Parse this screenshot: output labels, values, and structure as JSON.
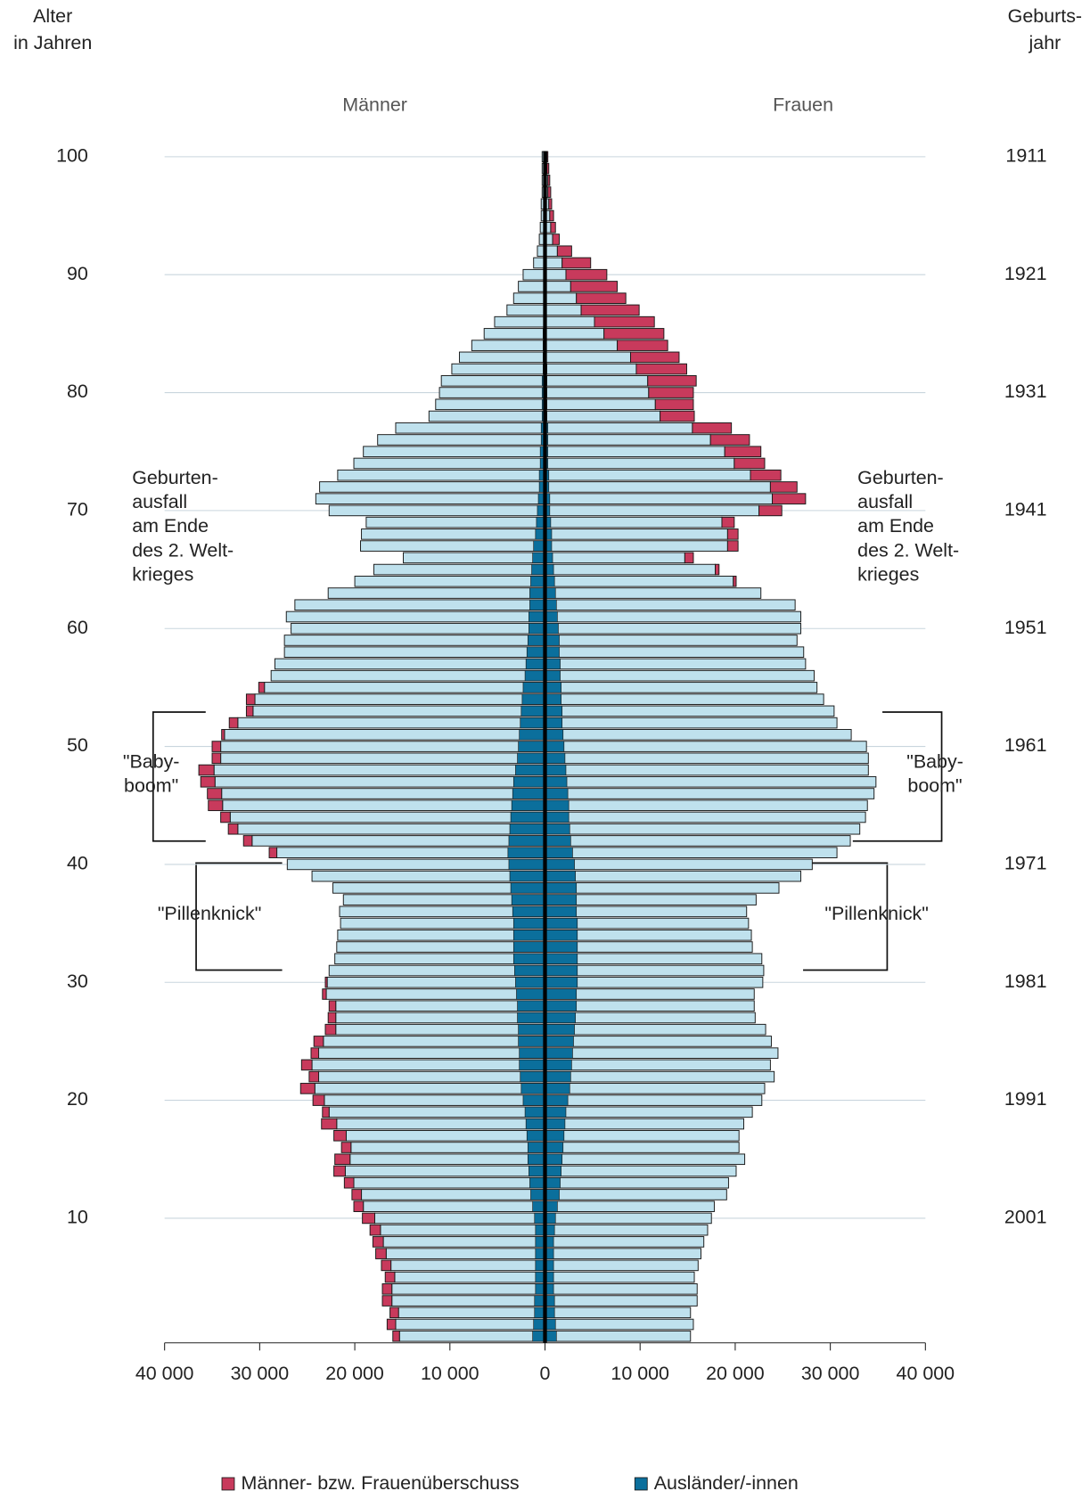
{
  "chart_data": {
    "type": "pyramid",
    "y_label": [
      "Alter",
      "in Jahren"
    ],
    "y2_label": [
      "Geburts-",
      "jahr"
    ],
    "sides": [
      {
        "label": "Männer",
        "base": [
          15300,
          15700,
          15400,
          16100,
          16100,
          15800,
          16200,
          16700,
          17000,
          17300,
          17900,
          19100,
          19300,
          20100,
          21000,
          20500,
          20400,
          20900,
          21900,
          22700,
          23200,
          24200,
          23800,
          24500,
          23800,
          23300,
          22000,
          22000,
          22000,
          23000,
          22900,
          22700,
          22100,
          21900,
          21800,
          21500,
          21600,
          21200,
          22300,
          24500,
          27100,
          28200,
          30800,
          32300,
          33100,
          33900,
          34000,
          34700,
          34800,
          34100,
          34100,
          33700,
          32300,
          30700,
          30500,
          29500,
          28800,
          28400,
          27400,
          27400,
          26700,
          27200,
          26300,
          22800,
          20000,
          18000,
          14900,
          19400,
          19300,
          18800,
          22700,
          24100,
          23700,
          21800,
          20100,
          19100,
          17600,
          15700,
          12200,
          11500,
          11100,
          10900,
          9800,
          9000,
          7700,
          6400,
          5300,
          4000,
          3300,
          2800,
          2300,
          1200,
          800,
          600,
          500,
          400,
          400,
          300,
          300,
          300,
          300
        ],
        "surplus": [
          700,
          900,
          900,
          1000,
          1000,
          1000,
          1000,
          1100,
          1100,
          1100,
          1300,
          1000,
          1000,
          1000,
          1200,
          1600,
          1000,
          1300,
          1600,
          700,
          1200,
          1500,
          1000,
          1100,
          800,
          1000,
          1100,
          800,
          700,
          400,
          200,
          0,
          0,
          0,
          0,
          0,
          0,
          0,
          0,
          0,
          0,
          800,
          900,
          1000,
          1000,
          1500,
          1500,
          1500,
          1600,
          900,
          900,
          300,
          900,
          700,
          900,
          600,
          0,
          0,
          0,
          0,
          0,
          0,
          0,
          0,
          0,
          0,
          0,
          0,
          0,
          0,
          0,
          0,
          0,
          0,
          0,
          0,
          0,
          0,
          0,
          0,
          0,
          0,
          0,
          0,
          0,
          0,
          0,
          0,
          0,
          0,
          0,
          0,
          0,
          0,
          0,
          0,
          0,
          0,
          0,
          0,
          0
        ],
        "foreign": [
          1300,
          1200,
          1100,
          1100,
          1000,
          1000,
          1000,
          1000,
          1000,
          1000,
          1100,
          1300,
          1500,
          1600,
          1700,
          1800,
          1800,
          1900,
          2000,
          2100,
          2300,
          2500,
          2600,
          2700,
          2700,
          2800,
          2800,
          2900,
          2900,
          3000,
          3100,
          3200,
          3300,
          3300,
          3300,
          3300,
          3400,
          3500,
          3600,
          3700,
          3800,
          3900,
          3800,
          3700,
          3600,
          3500,
          3400,
          3300,
          3100,
          2900,
          2800,
          2700,
          2600,
          2500,
          2400,
          2300,
          2100,
          2000,
          1900,
          1800,
          1700,
          1700,
          1600,
          1600,
          1500,
          1400,
          1300,
          1200,
          1000,
          900,
          800,
          700,
          600,
          600,
          500,
          500,
          400,
          400,
          300,
          300,
          300,
          300,
          200,
          200,
          200,
          200,
          100,
          100,
          100,
          100,
          100,
          100,
          100,
          100,
          100,
          100,
          100,
          100,
          100,
          100,
          100
        ]
      },
      {
        "label": "Frauen",
        "base": [
          15300,
          15600,
          15300,
          16000,
          16000,
          15700,
          16100,
          16400,
          16700,
          17100,
          17500,
          17800,
          19100,
          19300,
          20100,
          21000,
          20400,
          20400,
          20900,
          21800,
          22800,
          23100,
          24100,
          23700,
          24500,
          23800,
          23200,
          22100,
          22000,
          22000,
          22900,
          23000,
          22800,
          21800,
          21700,
          21400,
          21200,
          22200,
          24600,
          26900,
          28100,
          30700,
          32100,
          33100,
          33700,
          33900,
          34600,
          34800,
          34000,
          34000,
          33800,
          32200,
          30700,
          30400,
          29300,
          28600,
          28300,
          27400,
          27200,
          26500,
          26900,
          26900,
          26300,
          22700,
          19800,
          17900,
          14700,
          19200,
          19200,
          18600,
          22500,
          23900,
          23700,
          21600,
          19900,
          18900,
          17400,
          15500,
          12100,
          11600,
          10900,
          10800,
          9600,
          9000,
          7600,
          6200,
          5200,
          3800,
          3300,
          2700,
          2200,
          1800,
          1300,
          800,
          600,
          500,
          400,
          300,
          300,
          200,
          200
        ],
        "surplus": [
          0,
          0,
          0,
          0,
          0,
          0,
          0,
          0,
          0,
          0,
          0,
          0,
          0,
          0,
          0,
          0,
          0,
          0,
          0,
          0,
          0,
          0,
          0,
          0,
          0,
          0,
          0,
          0,
          0,
          0,
          0,
          0,
          0,
          0,
          0,
          0,
          0,
          0,
          0,
          0,
          0,
          0,
          0,
          0,
          0,
          0,
          0,
          0,
          0,
          0,
          0,
          0,
          0,
          0,
          0,
          0,
          0,
          0,
          0,
          0,
          0,
          0,
          0,
          0,
          300,
          400,
          900,
          1100,
          1100,
          1300,
          2400,
          3500,
          2800,
          3200,
          3200,
          3800,
          4100,
          4100,
          3600,
          4000,
          4700,
          5100,
          5300,
          5100,
          5300,
          6300,
          6300,
          6100,
          5200,
          4900,
          4300,
          3000,
          1500,
          700,
          500,
          400,
          300,
          300,
          200,
          200,
          100
        ],
        "foreign": [
          1200,
          1100,
          1000,
          1000,
          900,
          900,
          900,
          900,
          900,
          1000,
          1100,
          1300,
          1500,
          1600,
          1700,
          1800,
          1900,
          2000,
          2100,
          2200,
          2400,
          2600,
          2700,
          2800,
          2900,
          3000,
          3100,
          3200,
          3300,
          3300,
          3400,
          3400,
          3400,
          3400,
          3400,
          3400,
          3300,
          3300,
          3300,
          3200,
          3100,
          2900,
          2700,
          2600,
          2500,
          2500,
          2400,
          2300,
          2200,
          2100,
          2000,
          1900,
          1800,
          1800,
          1700,
          1700,
          1600,
          1600,
          1500,
          1500,
          1400,
          1300,
          1200,
          1100,
          1000,
          900,
          800,
          700,
          700,
          600,
          500,
          500,
          400,
          400,
          300,
          300,
          300,
          300,
          200,
          200,
          200,
          200,
          200,
          100,
          100,
          100,
          100,
          100,
          100,
          100,
          100,
          100,
          100,
          100,
          100,
          100,
          100,
          100,
          100,
          100,
          100
        ]
      }
    ],
    "ages": [
      0,
      1,
      2,
      3,
      4,
      5,
      6,
      7,
      8,
      9,
      10,
      11,
      12,
      13,
      14,
      15,
      16,
      17,
      18,
      19,
      20,
      21,
      22,
      23,
      24,
      25,
      26,
      27,
      28,
      29,
      30,
      31,
      32,
      33,
      34,
      35,
      36,
      37,
      38,
      39,
      40,
      41,
      42,
      43,
      44,
      45,
      46,
      47,
      48,
      49,
      50,
      51,
      52,
      53,
      54,
      55,
      56,
      57,
      58,
      59,
      60,
      61,
      62,
      63,
      64,
      65,
      66,
      67,
      68,
      69,
      70,
      71,
      72,
      73,
      74,
      75,
      76,
      77,
      78,
      79,
      80,
      81,
      82,
      83,
      84,
      85,
      86,
      87,
      88,
      89,
      90,
      91,
      92,
      93,
      94,
      95,
      96,
      97,
      98,
      99,
      100
    ],
    "ylim": [
      0,
      100
    ],
    "yticks": [
      10,
      20,
      30,
      40,
      50,
      60,
      70,
      80,
      90,
      100
    ],
    "y2ticks": [
      2001,
      1991,
      1981,
      1971,
      1961,
      1951,
      1941,
      1931,
      1921,
      1911
    ],
    "xlim": [
      0,
      40000
    ],
    "xticks": [
      0,
      {
        "value": 10000,
        "label": "10 000"
      },
      {
        "value": 20000,
        "label": "20 000"
      },
      {
        "value": 30000,
        "label": "30 000"
      },
      {
        "value": 40000,
        "label": "40 000"
      }
    ],
    "grid": true,
    "base_color": "#bfe1ed",
    "legend": [
      {
        "label": "Männer- bzw. Frauenüberschuss",
        "color": "#c83a5c"
      },
      {
        "label": "Ausländer/-innen",
        "color": "#0b6f9c"
      }
    ],
    "annotations": {
      "war": [
        "Geburten-",
        "ausfall",
        "am Ende",
        "des 2. Welt-",
        "krieges"
      ],
      "babyboom": [
        "\"Baby-",
        "boom\""
      ],
      "pillenknick": "\"Pillenknick\""
    }
  }
}
